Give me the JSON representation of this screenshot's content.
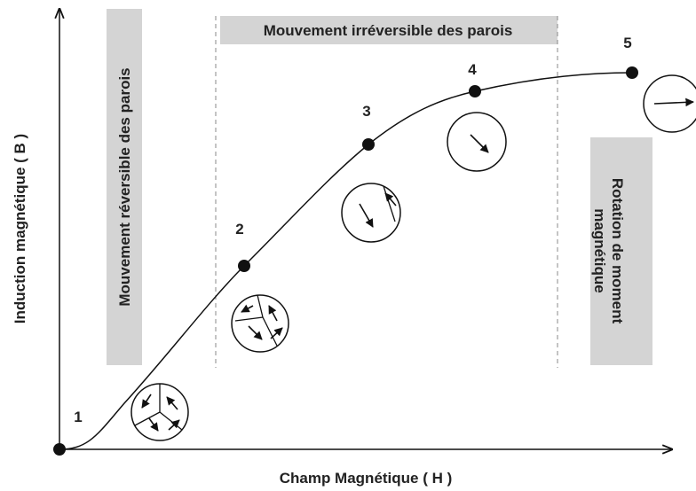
{
  "axes": {
    "x_label": "Champ Magnétique ( H )",
    "y_label": "Induction magnétique ( B )"
  },
  "regions": [
    {
      "lines": [
        "Mouvement réversible des parois"
      ]
    },
    {
      "lines": [
        "Mouvement irréversible des parois"
      ]
    },
    {
      "lines": [
        "Rotation de moment",
        "magnétique"
      ]
    }
  ],
  "points": [
    {
      "label": "1"
    },
    {
      "label": "2"
    },
    {
      "label": "3"
    },
    {
      "label": "4"
    },
    {
      "label": "5"
    }
  ]
}
